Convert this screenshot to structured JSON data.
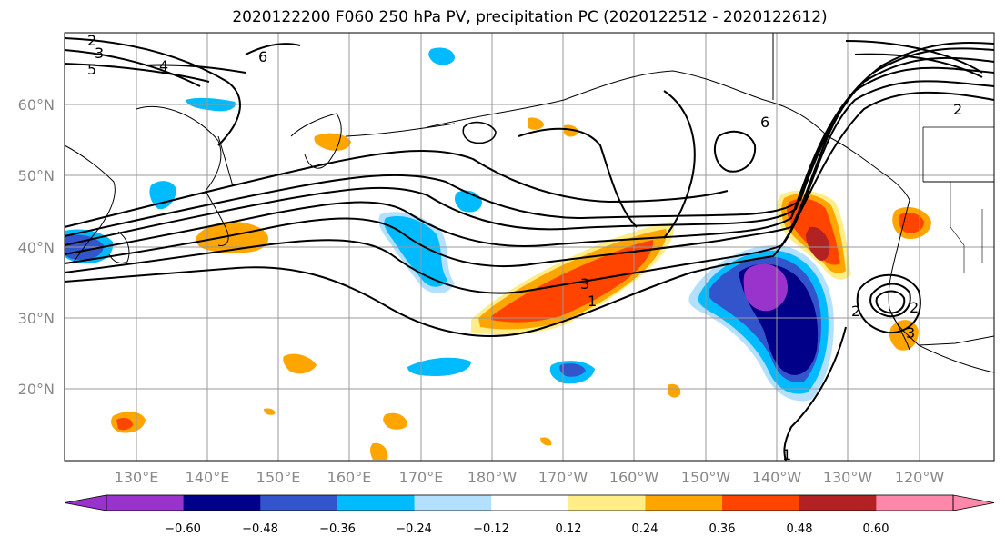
{
  "title": "2020122200 F060 250 hPa PV, precipitation PC (2020122512 - 2020122612)",
  "lat_labels": [
    "60°N",
    "50°N",
    "40°N",
    "30°N",
    "20°N"
  ],
  "lon_labels": [
    "130°E",
    "140°E",
    "150°E",
    "160°E",
    "170°E",
    "180°W",
    "170°W",
    "160°W",
    "150°W",
    "140°W",
    "130°W",
    "120°W"
  ],
  "colorbar": {
    "colors": [
      "#9933cc",
      "#000088",
      "#3355cc",
      "#00bbff",
      "#b3e0ff",
      "#ffffff",
      "#ffee88",
      "#ffa500",
      "#ff4400",
      "#b22222",
      "#ff88aa"
    ],
    "tick_labels": [
      "−0.60",
      "−0.48",
      "−0.36",
      "−0.24",
      "−0.12",
      "0.12",
      "0.24",
      "0.36",
      "0.48",
      "0.60"
    ]
  },
  "contour_labels": [
    "2",
    "3",
    "5",
    "4",
    "6",
    "2",
    "6",
    "3",
    "1",
    "2",
    "1",
    "2",
    "3"
  ]
}
